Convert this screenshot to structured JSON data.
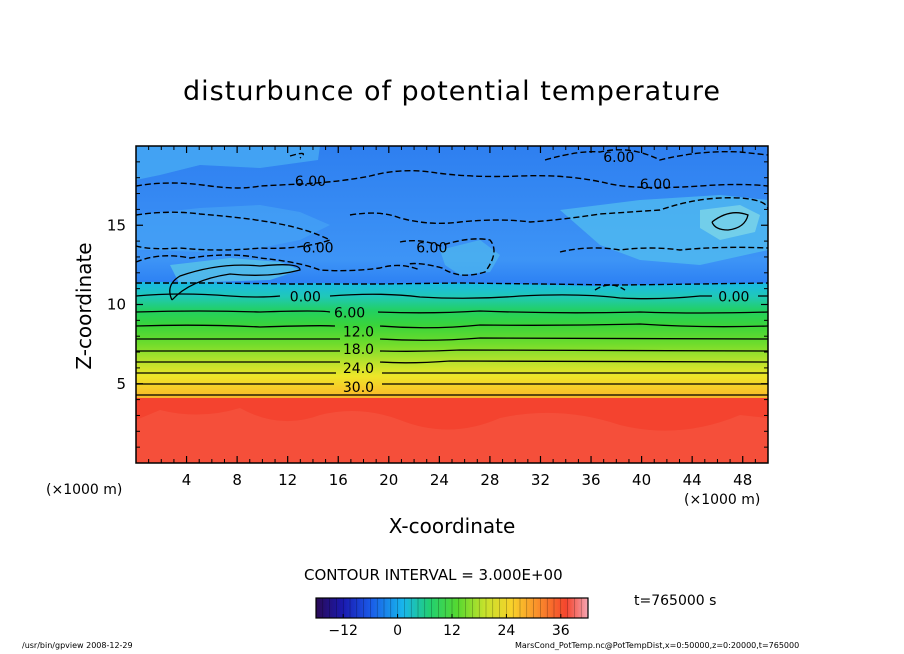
{
  "chart_data": {
    "type": "heatmap",
    "title": "disturbunce of potential temperature",
    "xlabel": "X-coordinate",
    "ylabel": "Z-coordinate",
    "x_unit": "(×1000 m)",
    "z_unit": "(×1000 m)",
    "xlim": [
      0,
      50
    ],
    "ylim": [
      0,
      20
    ],
    "x_ticks": [
      4,
      8,
      12,
      16,
      20,
      24,
      28,
      32,
      36,
      40,
      44,
      48
    ],
    "y_ticks": [
      5,
      10,
      15
    ],
    "contour_interval_text": "CONTOUR INTERVAL = 3.000E+00",
    "contour_labels": [
      {
        "text": "6.00",
        "x": 38.2,
        "z": 19.3
      },
      {
        "text": "6.00",
        "x": 13.8,
        "z": 17.8
      },
      {
        "text": "6.00",
        "x": 41.1,
        "z": 17.6
      },
      {
        "text": "6.00",
        "x": 14.4,
        "z": 13.6
      },
      {
        "text": "6.00",
        "x": 23.4,
        "z": 13.6
      },
      {
        "text": "0.00",
        "x": 13.4,
        "z": 10.5
      },
      {
        "text": "0.00",
        "x": 47.3,
        "z": 10.5
      },
      {
        "text": "6.00",
        "x": 16.9,
        "z": 9.5
      },
      {
        "text": "12.0",
        "x": 17.6,
        "z": 8.3
      },
      {
        "text": "18.0",
        "x": 17.6,
        "z": 7.2
      },
      {
        "text": "24.0",
        "x": 17.6,
        "z": 6.0
      },
      {
        "text": "30.0",
        "x": 17.6,
        "z": 4.8
      }
    ],
    "colorbar": {
      "ticks": [
        -12,
        0,
        12,
        24,
        36
      ],
      "range": [
        -18,
        42
      ]
    },
    "time_text": "t=765000 s"
  },
  "footer": {
    "left": "/usr/bin/gpview   2008-12-29",
    "right": "MarsCond_PotTemp.nc@PotTempDist,x=0:50000,z=0:20000,t=765000"
  }
}
